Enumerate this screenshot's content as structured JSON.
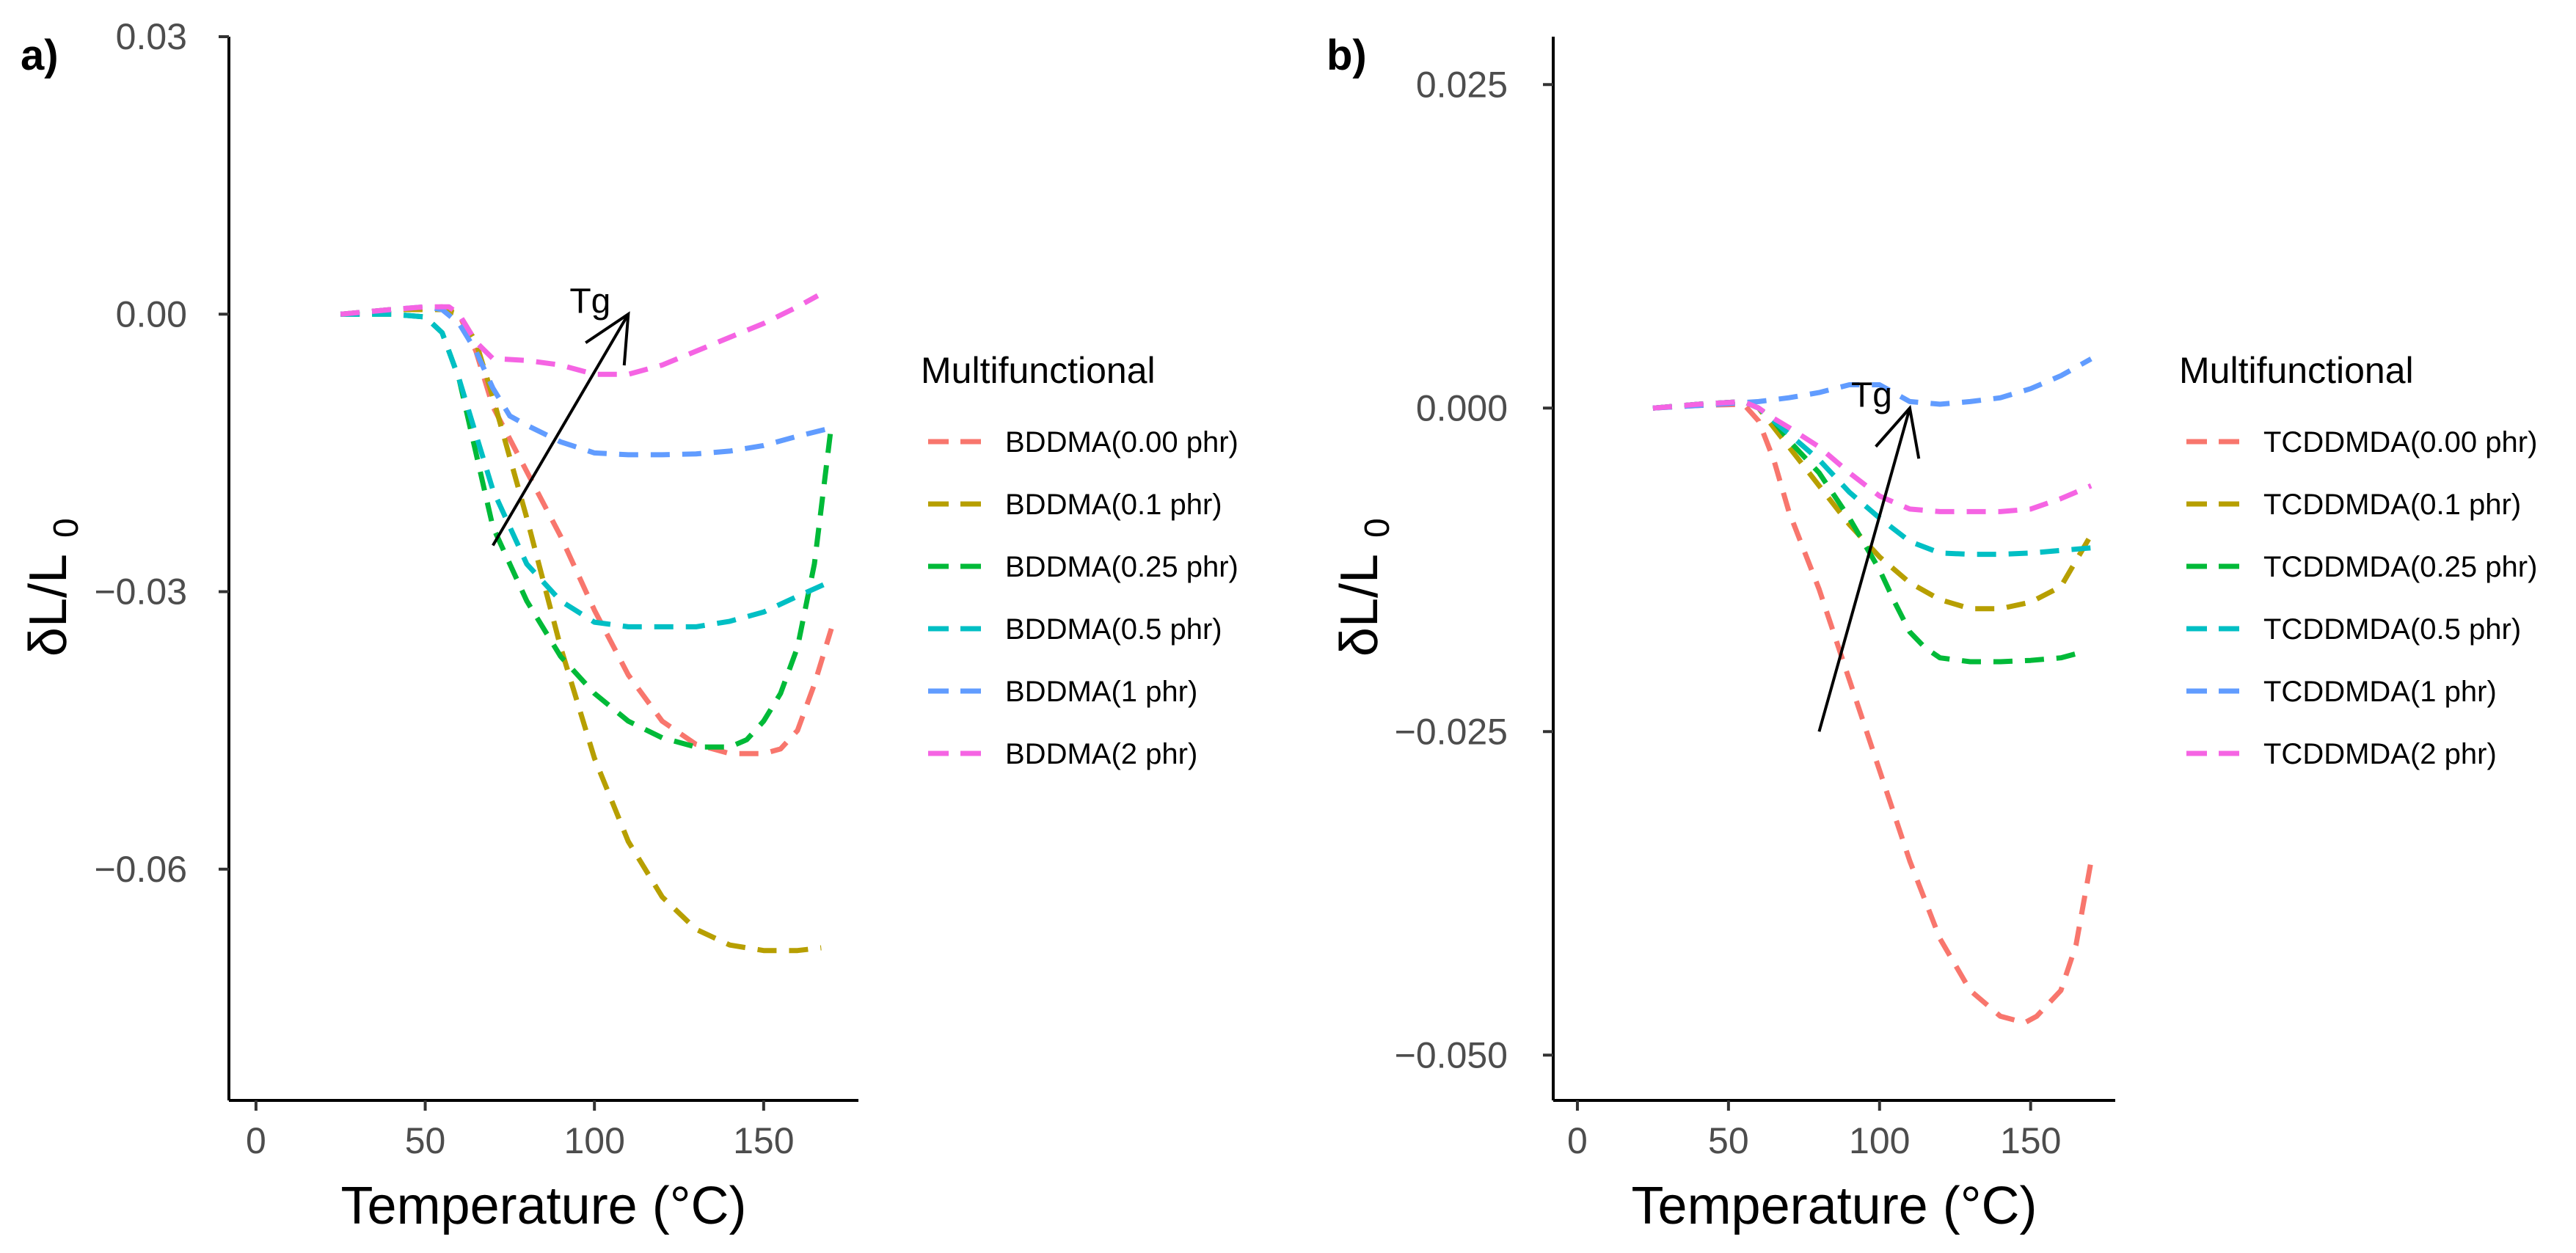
{
  "chart_data": [
    {
      "panel_label": "a)",
      "type": "line",
      "title": "",
      "xlabel": "Temperature (°C)",
      "ylabel_main": "δL/L",
      "ylabel_sub": "0",
      "xlim": [
        -8,
        178
      ],
      "ylim": [
        -0.085,
        0.03
      ],
      "xticks": [
        0,
        50,
        100,
        150
      ],
      "xtick_labels": [
        "0",
        "50",
        "100",
        "150"
      ],
      "yticks": [
        0.03,
        0.0,
        -0.03,
        -0.06
      ],
      "ytick_labels": [
        "0.03",
        "0.00",
        "−0.03",
        "−0.06"
      ],
      "legend_title": "Multifunctional",
      "annotation": {
        "text": "Tg",
        "arrow_from": [
          70,
          -0.025
        ],
        "arrow_to": [
          110,
          0.0
        ]
      },
      "series": [
        {
          "name": "BDDMA(0.00 phr)",
          "color": "#F8766D",
          "points": [
            [
              25,
              0
            ],
            [
              40,
              0.0005
            ],
            [
              55,
              0.0008
            ],
            [
              60,
              0
            ],
            [
              65,
              -0.004
            ],
            [
              70,
              -0.01
            ],
            [
              80,
              -0.017
            ],
            [
              90,
              -0.024
            ],
            [
              100,
              -0.032
            ],
            [
              110,
              -0.039
            ],
            [
              120,
              -0.044
            ],
            [
              130,
              -0.0465
            ],
            [
              140,
              -0.0475
            ],
            [
              150,
              -0.0475
            ],
            [
              155,
              -0.047
            ],
            [
              160,
              -0.045
            ],
            [
              165,
              -0.04
            ],
            [
              170,
              -0.034
            ]
          ]
        },
        {
          "name": "BDDMA(0.1 phr)",
          "color": "#B79F00",
          "points": [
            [
              25,
              0
            ],
            [
              40,
              0.0005
            ],
            [
              55,
              0.0005
            ],
            [
              60,
              0
            ],
            [
              65,
              -0.003
            ],
            [
              70,
              -0.009
            ],
            [
              80,
              -0.022
            ],
            [
              90,
              -0.036
            ],
            [
              100,
              -0.048
            ],
            [
              110,
              -0.057
            ],
            [
              120,
              -0.063
            ],
            [
              130,
              -0.0665
            ],
            [
              140,
              -0.0682
            ],
            [
              150,
              -0.0688
            ],
            [
              160,
              -0.0688
            ],
            [
              167,
              -0.0685
            ]
          ]
        },
        {
          "name": "BDDMA(0.25 phr)",
          "color": "#00BA38",
          "points": [
            [
              25,
              0
            ],
            [
              40,
              0
            ],
            [
              50,
              -0.0003
            ],
            [
              55,
              -0.002
            ],
            [
              60,
              -0.007
            ],
            [
              65,
              -0.015
            ],
            [
              70,
              -0.023
            ],
            [
              80,
              -0.031
            ],
            [
              90,
              -0.037
            ],
            [
              100,
              -0.041
            ],
            [
              110,
              -0.044
            ],
            [
              120,
              -0.0458
            ],
            [
              130,
              -0.0468
            ],
            [
              140,
              -0.0468
            ],
            [
              145,
              -0.046
            ],
            [
              150,
              -0.044
            ],
            [
              155,
              -0.041
            ],
            [
              160,
              -0.036
            ],
            [
              165,
              -0.027
            ],
            [
              168,
              -0.018
            ],
            [
              170,
              -0.012
            ]
          ]
        },
        {
          "name": "BDDMA(0.5 phr)",
          "color": "#00BFC4",
          "points": [
            [
              25,
              0
            ],
            [
              40,
              0
            ],
            [
              50,
              -0.0003
            ],
            [
              55,
              -0.002
            ],
            [
              60,
              -0.007
            ],
            [
              65,
              -0.013
            ],
            [
              70,
              -0.019
            ],
            [
              80,
              -0.027
            ],
            [
              90,
              -0.031
            ],
            [
              100,
              -0.0333
            ],
            [
              110,
              -0.0338
            ],
            [
              120,
              -0.0338
            ],
            [
              130,
              -0.0338
            ],
            [
              140,
              -0.0332
            ],
            [
              150,
              -0.0322
            ],
            [
              160,
              -0.0305
            ],
            [
              168,
              -0.0292
            ]
          ]
        },
        {
          "name": "BDDMA(1 phr)",
          "color": "#619CFF",
          "points": [
            [
              25,
              0
            ],
            [
              40,
              0.0005
            ],
            [
              50,
              0.0008
            ],
            [
              55,
              0.0005
            ],
            [
              60,
              -0.001
            ],
            [
              65,
              -0.004
            ],
            [
              70,
              -0.008
            ],
            [
              75,
              -0.011
            ],
            [
              80,
              -0.012
            ],
            [
              90,
              -0.0138
            ],
            [
              100,
              -0.015
            ],
            [
              110,
              -0.0152
            ],
            [
              120,
              -0.0152
            ],
            [
              130,
              -0.0151
            ],
            [
              140,
              -0.0148
            ],
            [
              150,
              -0.0142
            ],
            [
              160,
              -0.0132
            ],
            [
              170,
              -0.0123
            ]
          ]
        },
        {
          "name": "BDDMA(2 phr)",
          "color": "#F564E3",
          "points": [
            [
              25,
              0
            ],
            [
              40,
              0.0005
            ],
            [
              50,
              0.0008
            ],
            [
              57,
              0.0008
            ],
            [
              60,
              0
            ],
            [
              65,
              -0.003
            ],
            [
              70,
              -0.0048
            ],
            [
              80,
              -0.005
            ],
            [
              90,
              -0.0055
            ],
            [
              100,
              -0.0065
            ],
            [
              110,
              -0.0065
            ],
            [
              120,
              -0.0055
            ],
            [
              130,
              -0.004
            ],
            [
              140,
              -0.0025
            ],
            [
              150,
              -0.001
            ],
            [
              160,
              0.0008
            ],
            [
              166,
              0.002
            ]
          ]
        }
      ]
    },
    {
      "panel_label": "b)",
      "type": "line",
      "title": "",
      "xlabel": "Temperature (°C)",
      "ylabel_main": "δL/L",
      "ylabel_sub": "0",
      "xlim": [
        -8,
        178
      ],
      "ylim": [
        -0.0535,
        0.0287
      ],
      "xticks": [
        0,
        50,
        100,
        150
      ],
      "xtick_labels": [
        "0",
        "50",
        "100",
        "150"
      ],
      "yticks": [
        0.025,
        0.0,
        -0.025,
        -0.05
      ],
      "ytick_labels": [
        "0.025",
        "0.000",
        "−0.025",
        "−0.050"
      ],
      "legend_title": "Multifunctional",
      "annotation": {
        "text": "Tg",
        "arrow_from": [
          80,
          -0.025
        ],
        "arrow_to": [
          110,
          0.0
        ]
      },
      "series": [
        {
          "name": "TCDDMDA(0.00 phr)",
          "color": "#F8766D",
          "points": [
            [
              25,
              0
            ],
            [
              40,
              0.0002
            ],
            [
              55,
              0.0003
            ],
            [
              60,
              -0.001
            ],
            [
              65,
              -0.004
            ],
            [
              70,
              -0.008
            ],
            [
              80,
              -0.014
            ],
            [
              90,
              -0.021
            ],
            [
              100,
              -0.028
            ],
            [
              110,
              -0.035
            ],
            [
              120,
              -0.041
            ],
            [
              130,
              -0.045
            ],
            [
              140,
              -0.047
            ],
            [
              148,
              -0.0475
            ],
            [
              152,
              -0.047
            ],
            [
              160,
              -0.045
            ],
            [
              165,
              -0.0415
            ],
            [
              170,
              -0.035
            ]
          ]
        },
        {
          "name": "TCDDMDA(0.1 phr)",
          "color": "#B79F00",
          "points": [
            [
              25,
              0
            ],
            [
              40,
              0.0003
            ],
            [
              55,
              0.0005
            ],
            [
              60,
              0
            ],
            [
              65,
              -0.0015
            ],
            [
              70,
              -0.003
            ],
            [
              80,
              -0.006
            ],
            [
              90,
              -0.009
            ],
            [
              100,
              -0.0115
            ],
            [
              110,
              -0.0135
            ],
            [
              120,
              -0.0148
            ],
            [
              130,
              -0.0155
            ],
            [
              140,
              -0.0155
            ],
            [
              150,
              -0.015
            ],
            [
              160,
              -0.0138
            ],
            [
              170,
              -0.0098
            ]
          ]
        },
        {
          "name": "TCDDMDA(0.25 phr)",
          "color": "#00BA38",
          "points": [
            [
              25,
              0
            ],
            [
              40,
              0.0003
            ],
            [
              55,
              0.0005
            ],
            [
              60,
              0
            ],
            [
              65,
              -0.001
            ],
            [
              70,
              -0.0025
            ],
            [
              80,
              -0.005
            ],
            [
              90,
              -0.0085
            ],
            [
              100,
              -0.0125
            ],
            [
              105,
              -0.015
            ],
            [
              110,
              -0.0173
            ],
            [
              115,
              -0.0185
            ],
            [
              120,
              -0.0193
            ],
            [
              130,
              -0.0196
            ],
            [
              140,
              -0.0196
            ],
            [
              150,
              -0.0195
            ],
            [
              160,
              -0.0193
            ],
            [
              168,
              -0.0188
            ]
          ]
        },
        {
          "name": "TCDDMDA(0.5 phr)",
          "color": "#00BFC4",
          "points": [
            [
              25,
              0
            ],
            [
              40,
              0.0003
            ],
            [
              55,
              0.0005
            ],
            [
              60,
              0
            ],
            [
              65,
              -0.001
            ],
            [
              70,
              -0.002
            ],
            [
              80,
              -0.004
            ],
            [
              90,
              -0.0065
            ],
            [
              100,
              -0.0085
            ],
            [
              110,
              -0.0103
            ],
            [
              120,
              -0.0112
            ],
            [
              130,
              -0.0113
            ],
            [
              140,
              -0.0113
            ],
            [
              150,
              -0.0112
            ],
            [
              160,
              -0.011
            ],
            [
              170,
              -0.0108
            ]
          ]
        },
        {
          "name": "TCDDMDA(1 phr)",
          "color": "#619CFF",
          "points": [
            [
              25,
              0
            ],
            [
              40,
              0.0002
            ],
            [
              60,
              0.0005
            ],
            [
              70,
              0.0008
            ],
            [
              80,
              0.0012
            ],
            [
              90,
              0.0018
            ],
            [
              100,
              0.0018
            ],
            [
              110,
              0.0005
            ],
            [
              120,
              0.0003
            ],
            [
              130,
              0.0005
            ],
            [
              140,
              0.0008
            ],
            [
              150,
              0.0015
            ],
            [
              160,
              0.0025
            ],
            [
              170,
              0.0038
            ]
          ]
        },
        {
          "name": "TCDDMDA(2 phr)",
          "color": "#F564E3",
          "points": [
            [
              25,
              0
            ],
            [
              40,
              0.0003
            ],
            [
              55,
              0.0005
            ],
            [
              60,
              0
            ],
            [
              65,
              -0.0008
            ],
            [
              70,
              -0.0015
            ],
            [
              80,
              -0.003
            ],
            [
              90,
              -0.005
            ],
            [
              100,
              -0.0068
            ],
            [
              110,
              -0.0078
            ],
            [
              120,
              -0.008
            ],
            [
              130,
              -0.008
            ],
            [
              140,
              -0.008
            ],
            [
              150,
              -0.0078
            ],
            [
              160,
              -0.007
            ],
            [
              170,
              -0.006
            ]
          ]
        }
      ]
    }
  ]
}
